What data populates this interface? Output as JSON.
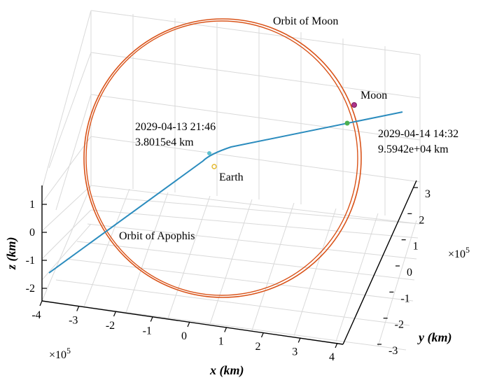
{
  "chart_data": {
    "type": "line",
    "title": "",
    "xlabel": "x (km)",
    "ylabel": "y (km)",
    "zlabel": "z (km)",
    "x_ticks": [
      "-4",
      "-3",
      "-2",
      "-1",
      "0",
      "1",
      "2",
      "3",
      "4"
    ],
    "y_ticks": [
      "3",
      "2",
      "1",
      "0",
      "-1",
      "-2",
      "-3"
    ],
    "z_ticks": [
      "1",
      "0",
      "-1",
      "-2"
    ],
    "x_exponent": "×10",
    "x_exponent_power": "5",
    "y_exponent": "×10",
    "y_exponent_power": "5",
    "grid": true,
    "series": [
      {
        "name": "Orbit of Moon",
        "color": "#d95319"
      },
      {
        "name": "Orbit of Apophis",
        "color": "#2b8cbe"
      }
    ],
    "points": [
      {
        "name": "Moon",
        "color": "#b0338a"
      },
      {
        "name": "Earth",
        "color": "#e3b82b"
      }
    ],
    "annotations": [
      {
        "line1": "2029-04-13 21:46",
        "line2": "3.8015e4 km",
        "color": "#5fc0cf"
      },
      {
        "line1": "2029-04-14 14:32",
        "line2": "9.5942e+04 km",
        "color": "#4caf50"
      }
    ]
  }
}
